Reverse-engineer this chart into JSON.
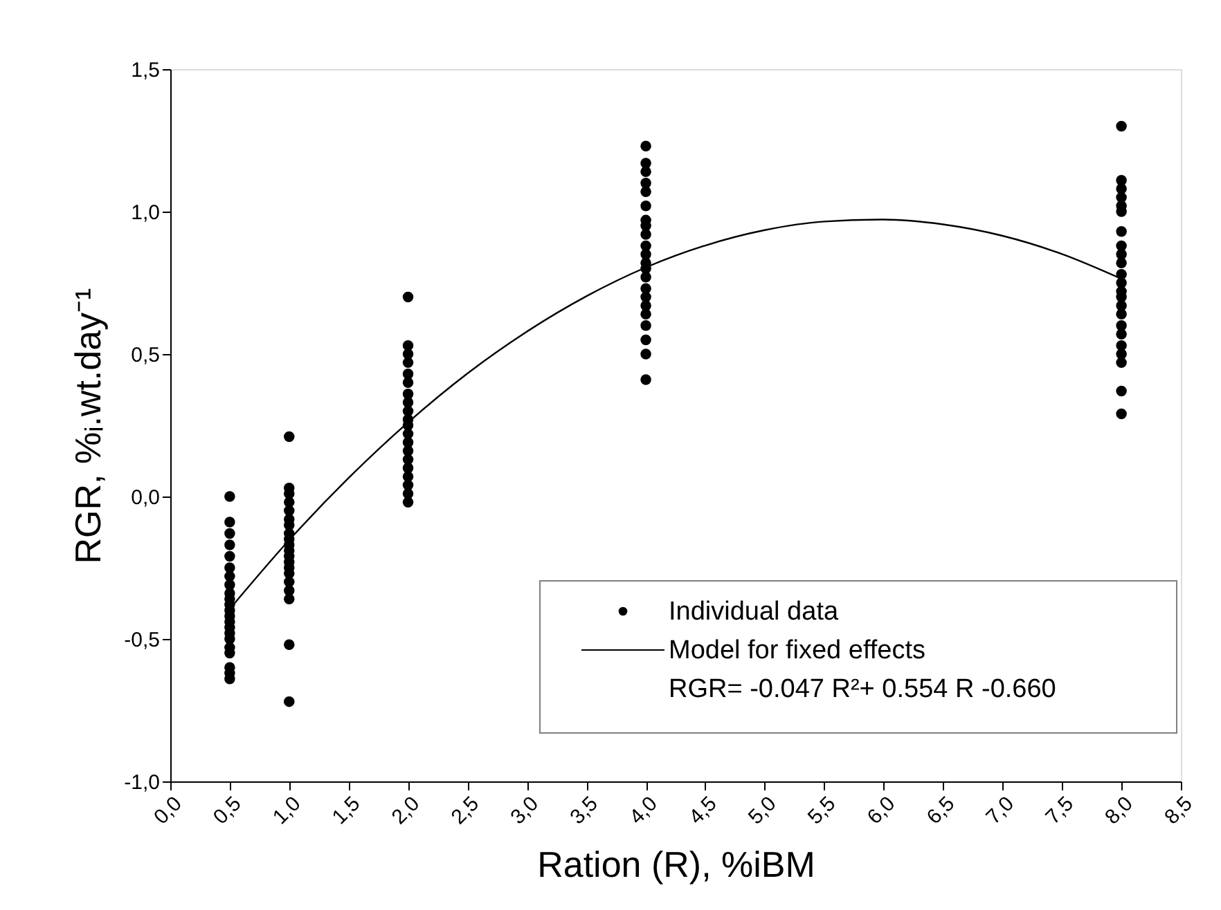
{
  "chart_data": {
    "type": "scatter",
    "xlabel": "Ration (R), %iBM",
    "ylabel": "RGR, %ᵢ.wt.day⁻¹",
    "xlim": [
      0,
      8.5
    ],
    "ylim": [
      -1,
      1.5
    ],
    "xticks": [
      {
        "value": 0,
        "label": "0,0"
      },
      {
        "value": 0.5,
        "label": "0,5"
      },
      {
        "value": 1,
        "label": "1,0"
      },
      {
        "value": 1.5,
        "label": "1,5"
      },
      {
        "value": 2,
        "label": "2,0"
      },
      {
        "value": 2.5,
        "label": "2,5"
      },
      {
        "value": 3,
        "label": "3,0"
      },
      {
        "value": 3.5,
        "label": "3,5"
      },
      {
        "value": 4,
        "label": "4,0"
      },
      {
        "value": 4.5,
        "label": "4,5"
      },
      {
        "value": 5,
        "label": "5,0"
      },
      {
        "value": 5.5,
        "label": "5,5"
      },
      {
        "value": 6,
        "label": "6,0"
      },
      {
        "value": 6.5,
        "label": "6,5"
      },
      {
        "value": 7,
        "label": "7,0"
      },
      {
        "value": 7.5,
        "label": "7,5"
      },
      {
        "value": 8,
        "label": "8,0"
      },
      {
        "value": 8.5,
        "label": "8,5"
      }
    ],
    "yticks": [
      {
        "value": -1,
        "label": "-1,0"
      },
      {
        "value": -0.5,
        "label": "-0,5"
      },
      {
        "value": 0,
        "label": "0,0"
      },
      {
        "value": 0.5,
        "label": "0,5"
      },
      {
        "value": 1,
        "label": "1,0"
      },
      {
        "value": 1.5,
        "label": "1,5"
      }
    ],
    "grid": false,
    "legend": "bottom right",
    "marker": "circle",
    "annotations": [
      "RGR= -0.047 R²+ 0.554 R -0.660"
    ],
    "series": [
      {
        "name": "Individual data",
        "color": "#000000",
        "x": [
          0.5,
          0.5,
          0.5,
          0.5,
          0.5,
          0.5,
          0.5,
          0.5,
          0.5,
          0.5,
          0.5,
          0.5,
          0.5,
          0.5,
          0.5,
          0.5,
          0.5,
          0.5,
          0.5,
          0.5,
          0.5,
          0.5,
          1,
          1,
          1,
          1,
          1,
          1,
          1,
          1,
          1,
          1,
          1,
          1,
          1,
          1,
          1,
          1,
          1,
          1,
          1,
          1,
          2,
          2,
          2,
          2,
          2,
          2,
          2,
          2,
          2,
          2,
          2,
          2,
          2,
          2,
          2,
          2,
          2,
          2,
          2,
          2,
          4,
          4,
          4,
          4,
          4,
          4,
          4,
          4,
          4,
          4,
          4,
          4,
          4,
          4,
          4,
          4,
          4,
          4,
          4,
          4,
          4,
          4,
          8,
          8,
          8,
          8,
          8,
          8,
          8,
          8,
          8,
          8,
          8,
          8,
          8,
          8,
          8,
          8,
          8,
          8,
          8,
          8,
          8,
          8,
          8
        ],
        "values": [
          0.0,
          -0.09,
          -0.13,
          -0.17,
          -0.21,
          -0.25,
          -0.28,
          -0.31,
          -0.34,
          -0.36,
          -0.38,
          -0.4,
          -0.42,
          -0.44,
          -0.46,
          -0.48,
          -0.5,
          -0.53,
          -0.55,
          -0.6,
          -0.62,
          -0.64,
          0.21,
          0.03,
          0.01,
          -0.02,
          -0.05,
          -0.08,
          -0.1,
          -0.13,
          -0.15,
          -0.17,
          -0.19,
          -0.21,
          -0.23,
          -0.25,
          -0.27,
          -0.3,
          -0.33,
          -0.36,
          -0.52,
          -0.72,
          0.7,
          0.53,
          0.5,
          0.47,
          0.43,
          0.4,
          0.36,
          0.33,
          0.3,
          0.27,
          0.25,
          0.22,
          0.19,
          0.16,
          0.13,
          0.1,
          0.07,
          0.04,
          0.01,
          -0.02,
          1.23,
          1.17,
          1.14,
          1.1,
          1.07,
          1.02,
          0.97,
          0.95,
          0.92,
          0.88,
          0.85,
          0.82,
          0.8,
          0.77,
          0.73,
          0.7,
          0.67,
          0.64,
          0.6,
          0.55,
          0.5,
          0.41,
          1.3,
          1.11,
          1.08,
          1.05,
          1.02,
          1.0,
          0.93,
          0.88,
          0.85,
          0.82,
          0.78,
          0.75,
          0.72,
          0.7,
          0.67,
          0.64,
          0.6,
          0.57,
          0.53,
          0.5,
          0.47,
          0.37,
          0.29
        ]
      },
      {
        "name": "Model for fixed effects",
        "type": "line",
        "color": "#000000",
        "marker": "none",
        "line_style": "solid",
        "x": [
          0.5,
          1,
          1.5,
          2,
          2.5,
          3,
          3.5,
          4,
          4.5,
          5,
          5.5,
          6,
          6.5,
          7,
          7.5,
          8
        ],
        "values": [
          -0.395,
          -0.153,
          0.065,
          0.26,
          0.432,
          0.579,
          0.703,
          0.804,
          0.881,
          0.935,
          0.965,
          0.972,
          0.955,
          0.915,
          0.851,
          0.764
        ]
      }
    ]
  }
}
